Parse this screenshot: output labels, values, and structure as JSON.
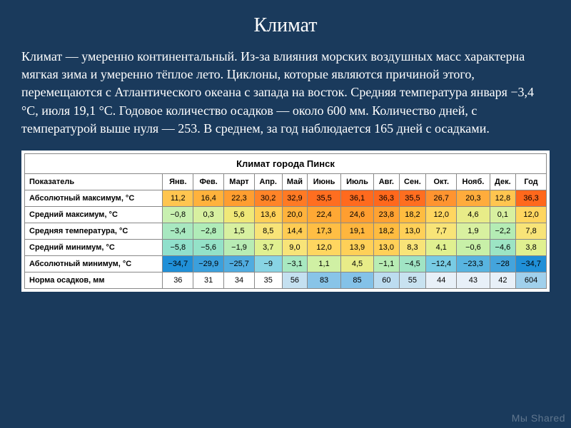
{
  "title": "Климат",
  "body": "Климат — умеренно континентальный. Из-за влияния морских воздушных масс характерна мягкая зима и умеренно тёплое лето. Циклоны, которые являются причиной этого, перемещаются с Атлантического океана с запада на восток. Средняя температура января −3,4 °C, июля 19,1 °C. Годовое количество осадков — около 600 мм. Количество дней, с температурой выше нуля — 253. В среднем, за год наблюдается 165 дней с осадками.",
  "table": {
    "title": "Климат города Пинск",
    "header_label": "Показатель",
    "months": [
      "Янв.",
      "Фев.",
      "Март",
      "Апр.",
      "Май",
      "Июнь",
      "Июль",
      "Авг.",
      "Сен.",
      "Окт.",
      "Нояб.",
      "Дек.",
      "Год"
    ],
    "rows": [
      {
        "label": "Абсолютный максимум, °C",
        "values": [
          "11,2",
          "16,4",
          "22,3",
          "30,2",
          "32,9",
          "35,5",
          "36,1",
          "36,3",
          "35,5",
          "26,7",
          "20,3",
          "12,8",
          "36,3"
        ],
        "colors": [
          "#ffc550",
          "#ffb23c",
          "#ff9e30",
          "#ff8428",
          "#ff7a24",
          "#ff6e20",
          "#ff6a1e",
          "#ff681c",
          "#ff6e20",
          "#ff9430",
          "#ffac3c",
          "#ffc550",
          "#ff681c"
        ]
      },
      {
        "label": "Средний максимум, °C",
        "values": [
          "−0,8",
          "0,3",
          "5,6",
          "13,6",
          "20,0",
          "22,4",
          "24,6",
          "23,8",
          "18,2",
          "12,0",
          "4,6",
          "0,1",
          "12,0"
        ],
        "colors": [
          "#c8f0b0",
          "#d8f0a0",
          "#f0e878",
          "#ffd058",
          "#ffb23c",
          "#ffa834",
          "#ff9e30",
          "#ffa232",
          "#ffbc40",
          "#ffd660",
          "#e8ec88",
          "#d8f0a0",
          "#ffd660"
        ]
      },
      {
        "label": "Средняя температура, °C",
        "values": [
          "−3,4",
          "−2,8",
          "1,5",
          "8,5",
          "14,4",
          "17,3",
          "19,1",
          "18,2",
          "13,0",
          "7,7",
          "1,9",
          "−2,2",
          "7,8"
        ],
        "colors": [
          "#a8e8c0",
          "#b0ecb8",
          "#d8f0a0",
          "#f8e478",
          "#ffcc54",
          "#ffbe44",
          "#ffb63e",
          "#ffbc40",
          "#ffd058",
          "#f8e478",
          "#d8f0a0",
          "#b4ecb4",
          "#f8e478"
        ]
      },
      {
        "label": "Средний минимум, °C",
        "values": [
          "−5,8",
          "−5,6",
          "−1,9",
          "3,7",
          "9,0",
          "12,0",
          "13,9",
          "13,0",
          "8,3",
          "4,1",
          "−0,6",
          "−4,6",
          "3,8"
        ],
        "colors": [
          "#90e0cc",
          "#94e2c8",
          "#b8ecb4",
          "#e0f090",
          "#f8e478",
          "#ffd660",
          "#ffd058",
          "#ffd058",
          "#f8e478",
          "#e0f090",
          "#c8f0a8",
          "#9ce4c4",
          "#e0f090"
        ]
      },
      {
        "label": "Абсолютный минимум, °C",
        "values": [
          "−34,7",
          "−29,9",
          "−25,7",
          "−9",
          "−3,1",
          "1,1",
          "4,5",
          "−1,1",
          "−4,5",
          "−12,4",
          "−23,3",
          "−28",
          "−34,7"
        ],
        "colors": [
          "#2090d8",
          "#3ca0dc",
          "#50ace0",
          "#88d4e4",
          "#a8e8c0",
          "#d0f0a4",
          "#e8ec88",
          "#b8ecb4",
          "#a0e4c4",
          "#78cce4",
          "#58b4e0",
          "#44a4dc",
          "#2090d8"
        ]
      },
      {
        "label": "Норма осадков, мм",
        "values": [
          "36",
          "31",
          "34",
          "35",
          "56",
          "83",
          "85",
          "60",
          "55",
          "44",
          "43",
          "42",
          "604"
        ],
        "colors": [
          "#ffffff",
          "#ffffff",
          "#ffffff",
          "#ffffff",
          "#c4e0f0",
          "#88c4e8",
          "#84c2e8",
          "#bcdcf0",
          "#c8e2f0",
          "#e8f0f8",
          "#e8f0f8",
          "#e8f0f8",
          "#a0d0ec"
        ]
      }
    ]
  },
  "watermark": "Мы Shared"
}
